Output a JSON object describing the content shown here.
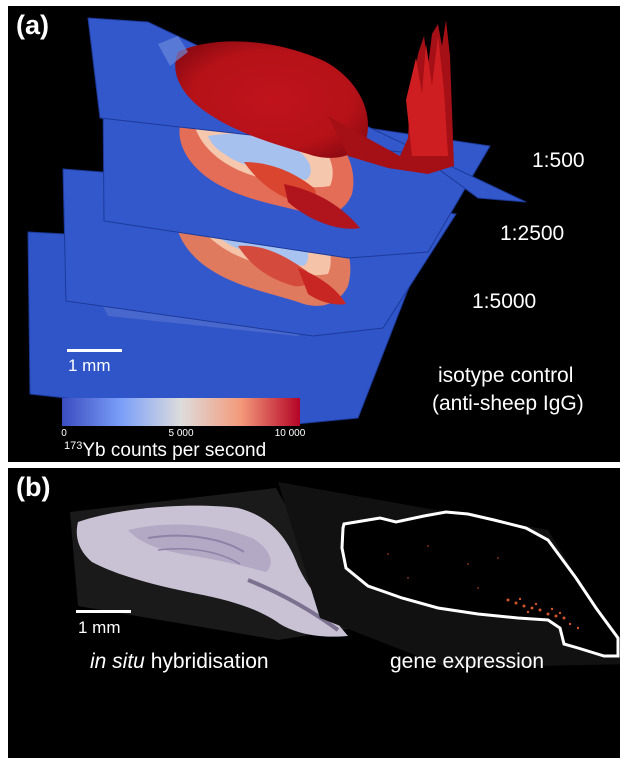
{
  "panel_a": {
    "label": "(a)",
    "dilutions": [
      "1:500",
      "1:2500",
      "1:5000"
    ],
    "control_label_1": "isotype control",
    "control_label_2": "(anti-sheep IgG)",
    "scale_text": "1 mm",
    "colorbar": {
      "ticks": [
        "0",
        "5 000",
        "10 000"
      ],
      "isotope_mass": "173",
      "unit_text": "Yb counts per second",
      "colors": [
        "#3b4cc0",
        "#dddcdc",
        "#b40426"
      ]
    }
  },
  "panel_b": {
    "label": "(b)",
    "scale_text": "1 mm",
    "caption_left_italic": "in situ",
    "caption_left_rest": " hybridisation",
    "caption_right": "gene expression"
  }
}
